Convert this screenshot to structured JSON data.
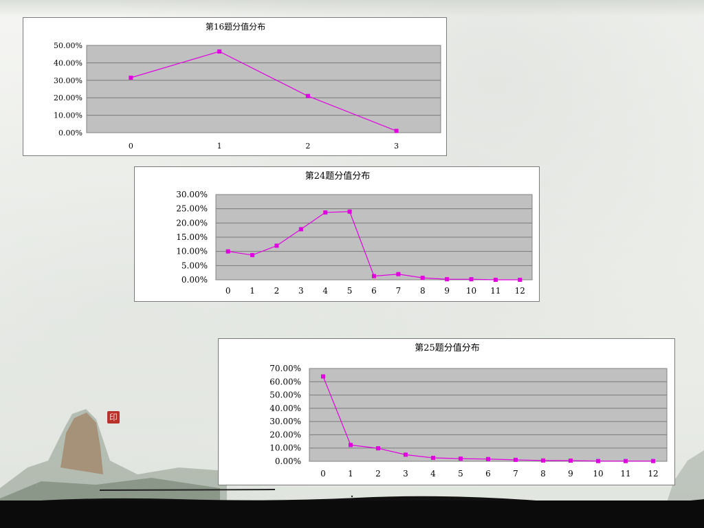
{
  "chart_data": [
    {
      "type": "line",
      "title": "第16题分值分布",
      "ylabel": "",
      "xlabel": "",
      "categories": [
        "0",
        "1",
        "2",
        "3"
      ],
      "y_ticks": [
        "0.00%",
        "10.00%",
        "20.00%",
        "30.00%",
        "40.00%",
        "50.00%"
      ],
      "ylim": [
        0,
        50
      ],
      "values": [
        31.5,
        46.5,
        21.0,
        1.0
      ],
      "grid": true,
      "series_color": "#e000e0",
      "plot_background": "#c0c0c0"
    },
    {
      "type": "line",
      "title": "第24题分值分布",
      "ylabel": "",
      "xlabel": "",
      "categories": [
        "0",
        "1",
        "2",
        "3",
        "4",
        "5",
        "6",
        "7",
        "8",
        "9",
        "10",
        "11",
        "12"
      ],
      "y_ticks": [
        "0.00%",
        "5.00%",
        "10.00%",
        "15.00%",
        "20.00%",
        "25.00%",
        "30.00%"
      ],
      "ylim": [
        0,
        30
      ],
      "values": [
        10.0,
        8.7,
        12.0,
        17.8,
        23.7,
        24.0,
        1.3,
        2.0,
        0.7,
        0.2,
        0.2,
        0.0,
        0.0
      ],
      "grid": true,
      "series_color": "#e000e0",
      "plot_background": "#c0c0c0"
    },
    {
      "type": "line",
      "title": "第25题分值分布",
      "ylabel": "",
      "xlabel": "",
      "categories": [
        "0",
        "1",
        "2",
        "3",
        "4",
        "5",
        "6",
        "7",
        "8",
        "9",
        "10",
        "11",
        "12"
      ],
      "y_ticks": [
        "0.00%",
        "10.00%",
        "20.00%",
        "30.00%",
        "40.00%",
        "50.00%",
        "60.00%",
        "70.00%"
      ],
      "ylim": [
        0,
        70
      ],
      "values": [
        64.0,
        12.3,
        9.8,
        5.0,
        2.6,
        2.0,
        1.7,
        1.1,
        0.6,
        0.5,
        0.2,
        0.2,
        0.2
      ],
      "grid": true,
      "series_color": "#e000e0",
      "plot_background": "#c0c0c0"
    }
  ],
  "decor": {
    "seal_text": "印",
    "band_color": "#0b0b0b"
  }
}
